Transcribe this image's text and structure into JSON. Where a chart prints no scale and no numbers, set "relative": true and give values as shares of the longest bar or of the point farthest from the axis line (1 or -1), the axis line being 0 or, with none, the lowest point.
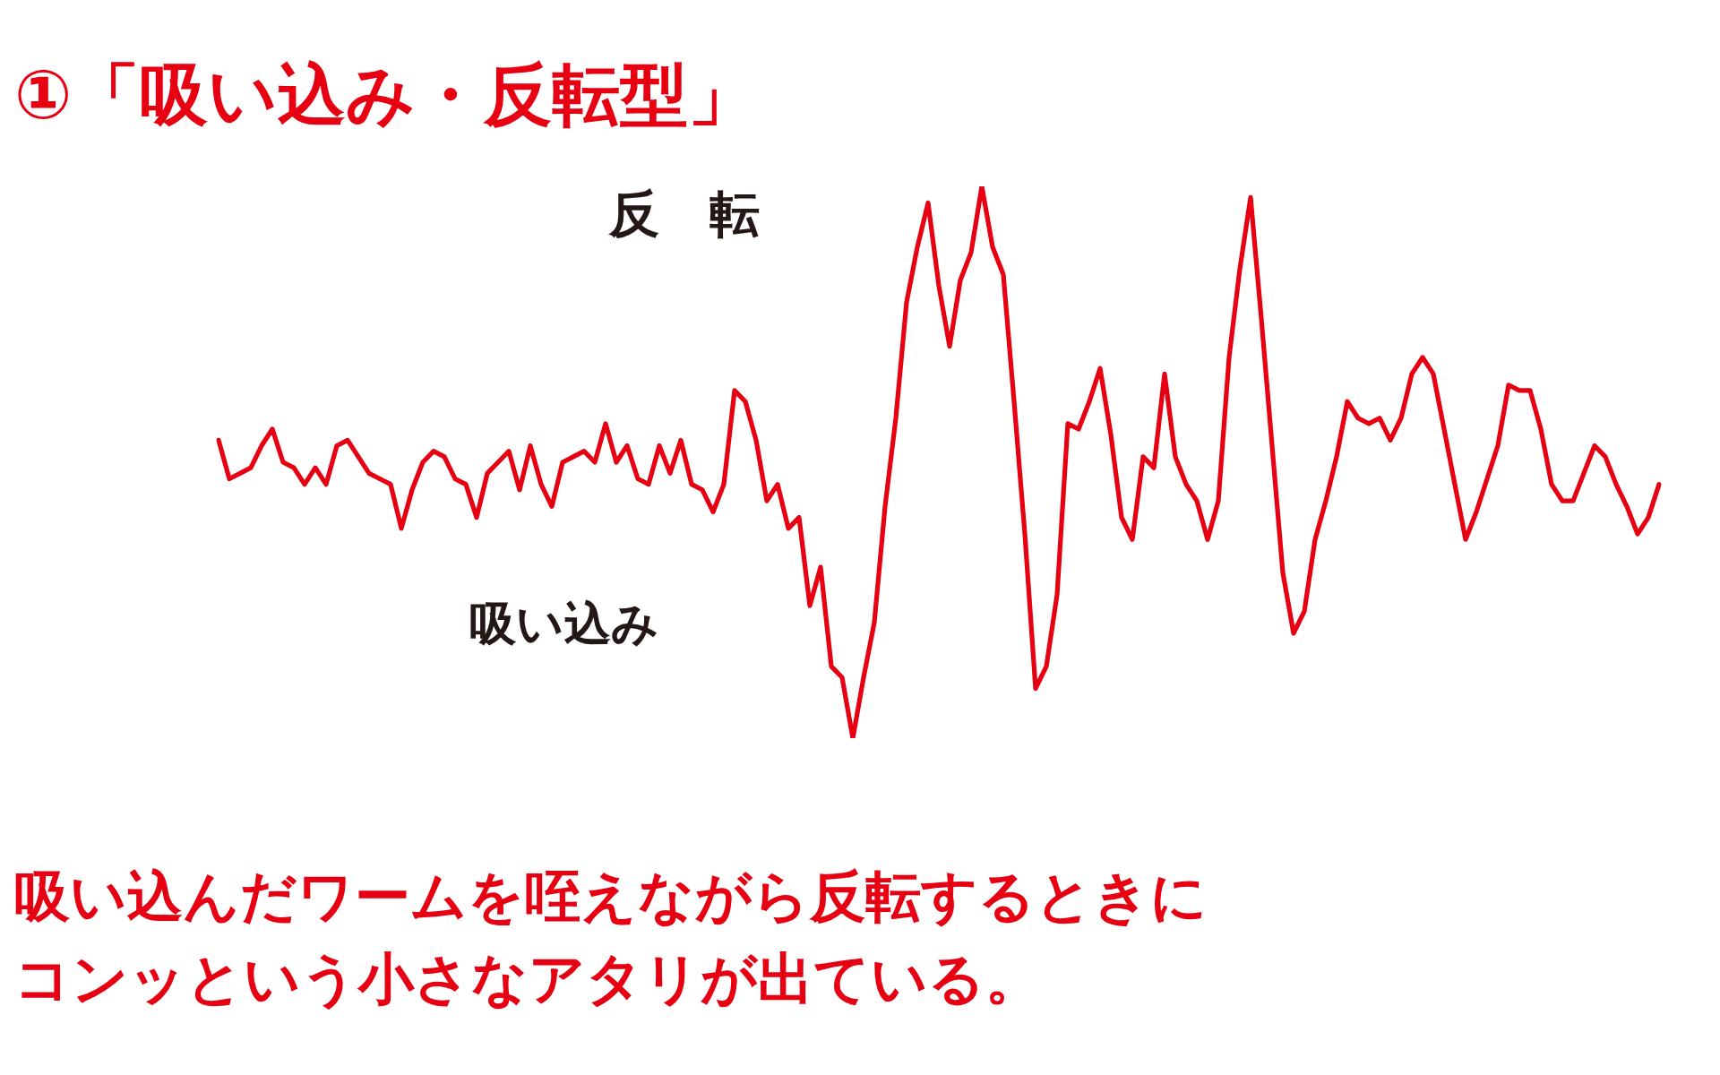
{
  "chart_data": {
    "type": "line",
    "title": "①「吸い込み・反転型」",
    "relative": true,
    "marker": "none",
    "line_style": "solid",
    "annotations": [
      "反　転",
      "吸い込み",
      "吸い込んだワームを咥えながら反転するときに",
      "コンッという小さなアタリが出ている。"
    ],
    "categories": [
      null,
      null,
      null,
      null,
      null,
      null,
      null,
      null,
      null,
      null,
      null,
      null,
      null,
      null,
      null,
      null,
      null,
      null,
      null,
      null,
      null,
      null,
      null,
      null,
      null,
      null,
      null,
      null,
      null,
      null,
      null,
      null,
      null,
      null,
      null,
      null,
      null,
      null,
      null,
      null,
      null,
      null,
      null,
      null,
      null,
      null,
      null,
      null,
      null,
      null,
      null,
      null,
      null,
      null,
      null,
      null,
      null,
      null,
      null,
      null,
      null,
      null,
      null,
      null,
      null,
      null,
      null,
      null,
      null,
      null,
      null,
      null,
      null,
      null,
      null,
      null,
      null,
      null,
      null,
      null,
      null,
      null,
      null,
      null,
      null,
      null,
      null,
      null,
      null,
      null,
      null,
      null,
      null,
      null,
      null,
      null,
      null,
      null,
      null,
      null,
      null,
      null,
      null,
      null,
      null,
      null,
      null,
      null,
      null,
      null,
      null,
      null,
      null,
      null,
      null,
      null,
      null,
      null,
      null,
      null,
      null,
      null,
      null,
      null,
      null,
      null,
      null,
      null,
      null,
      null,
      null,
      null,
      null,
      null,
      null
    ],
    "series": [
      {
        "color": "#e60012",
        "values": [
          0.54,
          0.47,
          0.48,
          0.49,
          0.53,
          0.56,
          0.5,
          0.49,
          0.46,
          0.49,
          0.46,
          0.53,
          0.54,
          0.51,
          0.48,
          0.47,
          0.46,
          0.38,
          0.45,
          0.5,
          0.52,
          0.51,
          0.47,
          0.46,
          0.4,
          0.48,
          0.5,
          0.52,
          0.45,
          0.53,
          0.46,
          0.42,
          0.5,
          0.51,
          0.52,
          0.5,
          0.57,
          0.5,
          0.53,
          0.47,
          0.46,
          0.53,
          0.48,
          0.54,
          0.46,
          0.45,
          0.41,
          0.46,
          0.63,
          0.61,
          0.54,
          0.43,
          0.46,
          0.38,
          0.4,
          0.24,
          0.31,
          0.13,
          0.11,
          0.0,
          0.11,
          0.21,
          0.42,
          0.58,
          0.79,
          0.89,
          0.97,
          0.82,
          0.71,
          0.83,
          0.88,
          1.0,
          0.89,
          0.84,
          0.61,
          0.37,
          0.09,
          0.13,
          0.26,
          0.57,
          0.56,
          0.61,
          0.67,
          0.55,
          0.4,
          0.36,
          0.51,
          0.49,
          0.66,
          0.51,
          0.46,
          0.43,
          0.36,
          0.43,
          0.69,
          0.85,
          0.98,
          0.76,
          0.53,
          0.3,
          0.19,
          0.23,
          0.36,
          0.43,
          0.51,
          0.61,
          0.58,
          0.57,
          0.58,
          0.54,
          0.58,
          0.66,
          0.69,
          0.66,
          0.56,
          0.46,
          0.36,
          0.41,
          0.47,
          0.53,
          0.64,
          0.63,
          0.63,
          0.56,
          0.46,
          0.43,
          0.43,
          0.48,
          0.53,
          0.51,
          0.46,
          0.42,
          0.37,
          0.4,
          0.46
        ]
      }
    ]
  }
}
